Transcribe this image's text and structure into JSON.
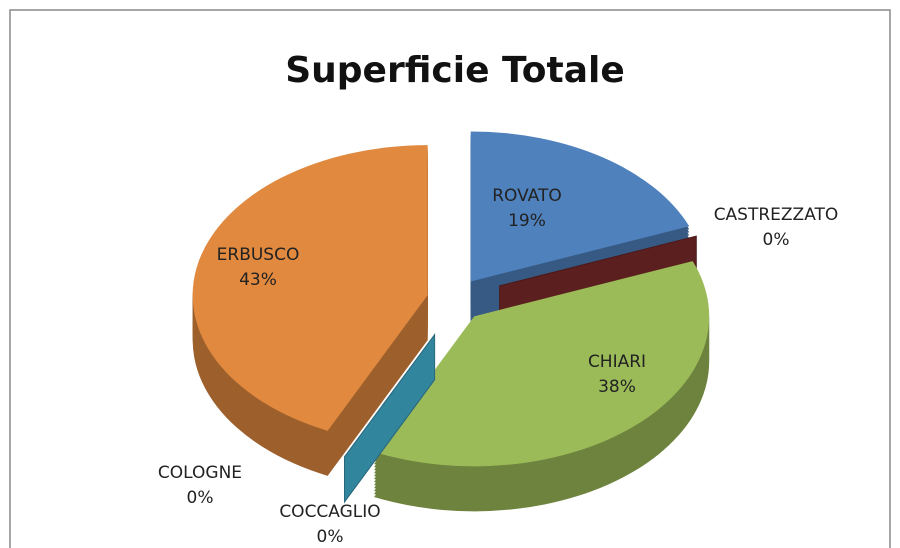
{
  "chart_data": {
    "type": "pie",
    "title": "Superficie Totale",
    "categories": [
      "ROVATO",
      "CASTREZZATO",
      "CHIARI",
      "COCCAGLIO",
      "COLOGNE",
      "ERBUSCO"
    ],
    "values": [
      19,
      0,
      38,
      0,
      0,
      43
    ],
    "value_labels": [
      "19%",
      "0%",
      "38%",
      "0%",
      "0%",
      "43%"
    ],
    "colors": [
      "#4f81bd",
      "#5c1f1f",
      "#9bbb59",
      "#8064a2",
      "#31859c",
      "#e0893f"
    ]
  }
}
